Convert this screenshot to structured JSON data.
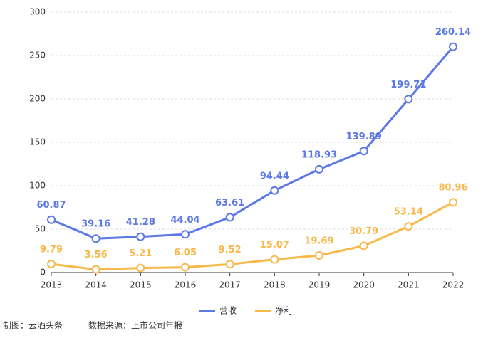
{
  "chart_data": {
    "type": "line",
    "categories": [
      "2013",
      "2014",
      "2015",
      "2016",
      "2017",
      "2018",
      "2019",
      "2020",
      "2021",
      "2022"
    ],
    "series": [
      {
        "name": "营收",
        "color": "#5b78e6",
        "values": [
          60.87,
          39.16,
          41.28,
          44.04,
          63.61,
          94.44,
          118.93,
          139.89,
          199.71,
          260.14
        ]
      },
      {
        "name": "净利",
        "color": "#f8b84a",
        "values": [
          9.79,
          3.56,
          5.21,
          6.05,
          9.52,
          15.07,
          19.69,
          30.79,
          53.14,
          80.96
        ]
      }
    ],
    "ylim": [
      0,
      300
    ],
    "yticks": [
      0,
      50,
      100,
      150,
      200,
      250,
      300
    ],
    "grid": true,
    "legend": "bottom",
    "note": "制图：云酒头条",
    "source": "数据来源：上市公司年报"
  }
}
